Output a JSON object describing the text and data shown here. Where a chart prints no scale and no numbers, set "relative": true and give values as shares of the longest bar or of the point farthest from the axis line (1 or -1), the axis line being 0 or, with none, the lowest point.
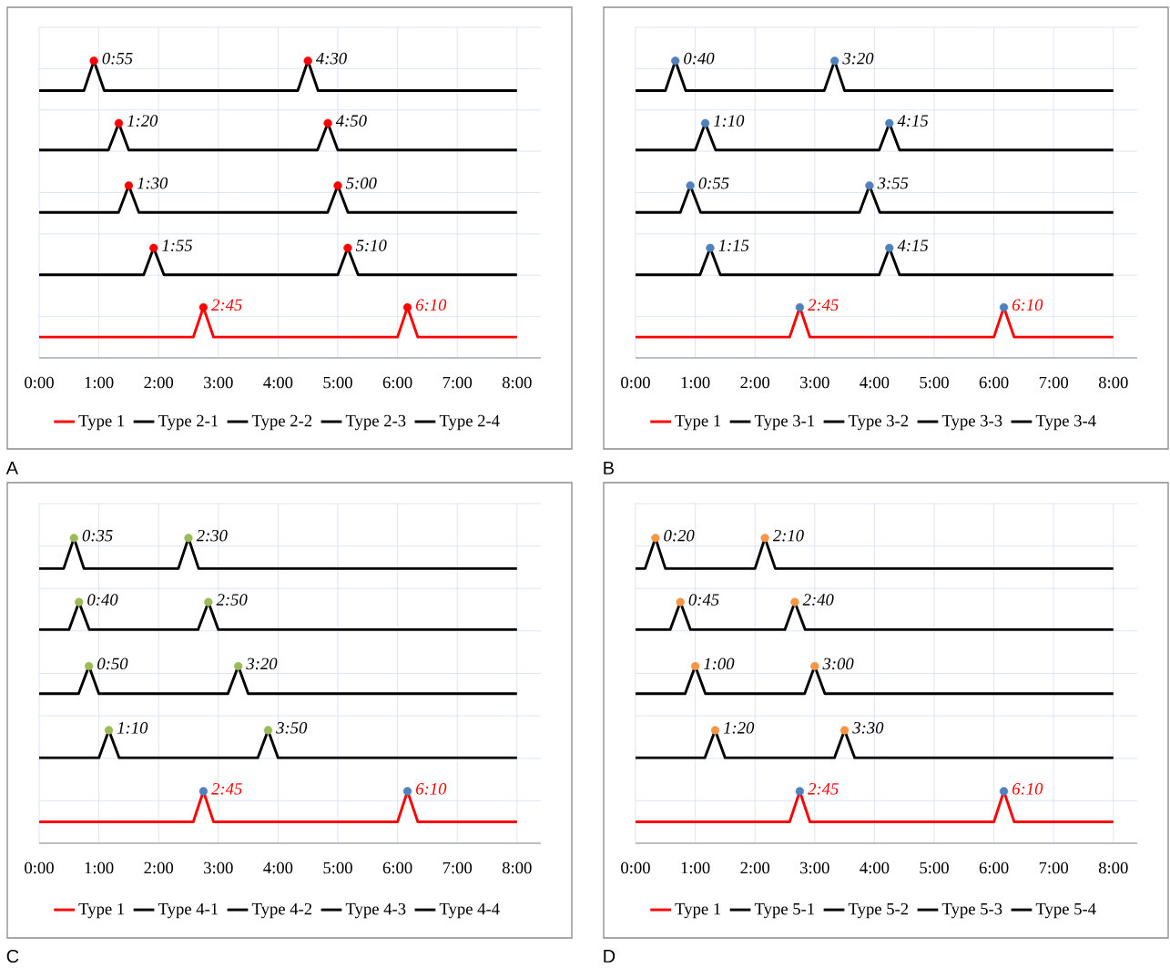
{
  "chart_data": [
    {
      "type": "line",
      "relative": true,
      "grid": true,
      "legend": "bottom",
      "xlim": [
        0,
        8.4
      ],
      "xticks": [
        {
          "value": 0,
          "label": "0:00"
        },
        {
          "value": 1,
          "label": "1:00"
        },
        {
          "value": 2,
          "label": "2:00"
        },
        {
          "value": 3,
          "label": "3:00"
        },
        {
          "value": 4,
          "label": "4:00"
        },
        {
          "value": 5,
          "label": "5:00"
        },
        {
          "value": 6,
          "label": "6:00"
        },
        {
          "value": 7,
          "label": "7:00"
        },
        {
          "value": 8,
          "label": "8:00"
        }
      ],
      "series": [
        {
          "name": "Type 1",
          "color": "#ff0000",
          "x": [
            0,
            2.58,
            2.75,
            2.92,
            6,
            6.1667,
            6.34,
            8
          ],
          "values": [
            0.07,
            0.07,
            0.17,
            0.07,
            0.07,
            0.17,
            0.07,
            0.07
          ]
        },
        {
          "name": "Type 2-1",
          "color": "#000000",
          "x": [
            0,
            0.75,
            0.9167,
            1.09,
            4.33,
            4.5,
            4.67,
            8
          ],
          "values": [
            0.9,
            0.9,
            1,
            0.9,
            0.9,
            1,
            0.9,
            0.9
          ]
        },
        {
          "name": "Type 2-2",
          "color": "#000000",
          "x": [
            0,
            1.16,
            1.3333,
            1.5,
            4.66,
            4.8333,
            5,
            8
          ],
          "values": [
            0.7,
            0.7,
            0.79,
            0.7,
            0.7,
            0.79,
            0.7,
            0.7
          ]
        },
        {
          "name": "Type 2-3",
          "color": "#000000",
          "x": [
            0,
            1.33,
            1.5,
            1.67,
            4.83,
            5,
            5.17,
            8
          ],
          "values": [
            0.49,
            0.49,
            0.58,
            0.49,
            0.49,
            0.58,
            0.49,
            0.49
          ]
        },
        {
          "name": "Type 2-4",
          "color": "#000000",
          "x": [
            0,
            1.75,
            1.9167,
            2.09,
            5,
            5.1667,
            5.34,
            8
          ],
          "values": [
            0.28,
            0.28,
            0.37,
            0.28,
            0.28,
            0.37,
            0.28,
            0.28
          ]
        },
        {
          "type": "scatter",
          "marker": "circle",
          "x": [
            2.75,
            6.1667,
            0.9167,
            4.5,
            1.3333,
            4.8333,
            1.5,
            5,
            1.9167,
            5.1667
          ],
          "values": [
            0.17,
            0.17,
            1,
            1,
            0.79,
            0.79,
            0.58,
            0.58,
            0.37,
            0.37
          ],
          "colors": [
            "#ff0000",
            "#ff0000",
            "#ff0000",
            "#ff0000",
            "#ff0000",
            "#ff0000",
            "#ff0000",
            "#ff0000",
            "#ff0000",
            "#ff0000"
          ]
        }
      ],
      "annotations": [
        {
          "text": "2:45",
          "x": 2.75,
          "y": 0.17
        },
        {
          "text": "6:10",
          "x": 6.1667,
          "y": 0.17
        },
        {
          "text": "0:55",
          "x": 0.9167,
          "y": 1
        },
        {
          "text": "4:30",
          "x": 4.5,
          "y": 1
        },
        {
          "text": "1:20",
          "x": 1.3333,
          "y": 0.79
        },
        {
          "text": "4:50",
          "x": 4.8333,
          "y": 0.79
        },
        {
          "text": "1:30",
          "x": 1.5,
          "y": 0.58
        },
        {
          "text": "5:00",
          "x": 5,
          "y": 0.58
        },
        {
          "text": "1:55",
          "x": 1.9167,
          "y": 0.37
        },
        {
          "text": "5:10",
          "x": 5.1667,
          "y": 0.37
        },
        "A"
      ]
    },
    {
      "type": "line",
      "relative": true,
      "grid": true,
      "legend": "bottom",
      "xlim": [
        0,
        8.4
      ],
      "xticks": [
        {
          "value": 0,
          "label": "0:00"
        },
        {
          "value": 1,
          "label": "1:00"
        },
        {
          "value": 2,
          "label": "2:00"
        },
        {
          "value": 3,
          "label": "3:00"
        },
        {
          "value": 4,
          "label": "4:00"
        },
        {
          "value": 5,
          "label": "5:00"
        },
        {
          "value": 6,
          "label": "6:00"
        },
        {
          "value": 7,
          "label": "7:00"
        },
        {
          "value": 8,
          "label": "8:00"
        }
      ],
      "series": [
        {
          "name": "Type 1",
          "color": "#ff0000",
          "x": [
            0,
            2.58,
            2.75,
            2.92,
            6,
            6.1667,
            6.34,
            8
          ],
          "values": [
            0.07,
            0.07,
            0.17,
            0.07,
            0.07,
            0.17,
            0.07,
            0.07
          ]
        },
        {
          "name": "Type 3-1",
          "color": "#000000",
          "x": [
            0,
            0.5,
            0.6667,
            0.84,
            3.16,
            3.3333,
            3.5,
            8
          ],
          "values": [
            0.9,
            0.9,
            1,
            0.9,
            0.9,
            1,
            0.9,
            0.9
          ]
        },
        {
          "name": "Type 3-2",
          "color": "#000000",
          "x": [
            0,
            1,
            1.1667,
            1.34,
            4.08,
            4.25,
            4.42,
            8
          ],
          "values": [
            0.7,
            0.7,
            0.79,
            0.7,
            0.7,
            0.79,
            0.7,
            0.7
          ]
        },
        {
          "name": "Type 3-3",
          "color": "#000000",
          "x": [
            0,
            0.75,
            0.9167,
            1.09,
            3.75,
            3.9167,
            4.09,
            8
          ],
          "values": [
            0.49,
            0.49,
            0.58,
            0.49,
            0.49,
            0.58,
            0.49,
            0.49
          ]
        },
        {
          "name": "Type 3-4",
          "color": "#000000",
          "x": [
            0,
            1.08,
            1.25,
            1.42,
            4.08,
            4.25,
            4.42,
            8
          ],
          "values": [
            0.28,
            0.28,
            0.37,
            0.28,
            0.28,
            0.37,
            0.28,
            0.28
          ]
        },
        {
          "type": "scatter",
          "marker": "circle",
          "x": [
            2.75,
            6.1667,
            0.6667,
            3.3333,
            1.1667,
            4.25,
            0.9167,
            3.9167,
            1.25,
            4.25
          ],
          "values": [
            0.17,
            0.17,
            1,
            1,
            0.79,
            0.79,
            0.58,
            0.58,
            0.37,
            0.37
          ],
          "colors": [
            "#4f81bd",
            "#4f81bd",
            "#4f81bd",
            "#4f81bd",
            "#4f81bd",
            "#4f81bd",
            "#4f81bd",
            "#4f81bd",
            "#4f81bd",
            "#4f81bd"
          ]
        }
      ],
      "annotations": [
        {
          "text": "2:45",
          "x": 2.75,
          "y": 0.17
        },
        {
          "text": "6:10",
          "x": 6.1667,
          "y": 0.17
        },
        {
          "text": "0:40",
          "x": 0.6667,
          "y": 1
        },
        {
          "text": "3:20",
          "x": 3.3333,
          "y": 1
        },
        {
          "text": "1:10",
          "x": 1.1667,
          "y": 0.79
        },
        {
          "text": "4:15",
          "x": 4.25,
          "y": 0.79
        },
        {
          "text": "0:55",
          "x": 0.9167,
          "y": 0.58
        },
        {
          "text": "3:55",
          "x": 3.9167,
          "y": 0.58
        },
        {
          "text": "1:15",
          "x": 1.25,
          "y": 0.37
        },
        {
          "text": "4:15",
          "x": 4.25,
          "y": 0.37
        },
        "B"
      ]
    },
    {
      "type": "line",
      "relative": true,
      "grid": true,
      "legend": "bottom",
      "xlim": [
        0,
        8.4
      ],
      "xticks": [
        {
          "value": 0,
          "label": "0:00"
        },
        {
          "value": 1,
          "label": "1:00"
        },
        {
          "value": 2,
          "label": "2:00"
        },
        {
          "value": 3,
          "label": "3:00"
        },
        {
          "value": 4,
          "label": "4:00"
        },
        {
          "value": 5,
          "label": "5:00"
        },
        {
          "value": 6,
          "label": "6:00"
        },
        {
          "value": 7,
          "label": "7:00"
        },
        {
          "value": 8,
          "label": "8:00"
        }
      ],
      "series": [
        {
          "name": "Type 1",
          "color": "#ff0000",
          "x": [
            0,
            2.58,
            2.75,
            2.92,
            6,
            6.1667,
            6.34,
            8
          ],
          "values": [
            0.07,
            0.07,
            0.17,
            0.07,
            0.07,
            0.17,
            0.07,
            0.07
          ]
        },
        {
          "name": "Type 4-1",
          "color": "#000000",
          "x": [
            0,
            0.41,
            0.5833,
            0.75,
            2.33,
            2.5,
            2.67,
            8
          ],
          "values": [
            0.9,
            0.9,
            1,
            0.9,
            0.9,
            1,
            0.9,
            0.9
          ]
        },
        {
          "name": "Type 4-2",
          "color": "#000000",
          "x": [
            0,
            0.5,
            0.6667,
            0.84,
            2.66,
            2.8333,
            3,
            8
          ],
          "values": [
            0.7,
            0.7,
            0.79,
            0.7,
            0.7,
            0.79,
            0.7,
            0.7
          ]
        },
        {
          "name": "Type 4-3",
          "color": "#000000",
          "x": [
            0,
            0.66,
            0.8333,
            1,
            3.16,
            3.3333,
            3.5,
            8
          ],
          "values": [
            0.49,
            0.49,
            0.58,
            0.49,
            0.49,
            0.58,
            0.49,
            0.49
          ]
        },
        {
          "name": "Type 4-4",
          "color": "#000000",
          "x": [
            0,
            1,
            1.1667,
            1.34,
            3.66,
            3.8333,
            4,
            8
          ],
          "values": [
            0.28,
            0.28,
            0.37,
            0.28,
            0.28,
            0.37,
            0.28,
            0.28
          ]
        },
        {
          "type": "scatter",
          "marker": "circle",
          "x": [
            2.75,
            6.1667,
            0.5833,
            2.5,
            0.6667,
            2.8333,
            0.8333,
            3.3333,
            1.1667,
            3.8333
          ],
          "values": [
            0.17,
            0.17,
            1,
            1,
            0.79,
            0.79,
            0.58,
            0.58,
            0.37,
            0.37
          ],
          "colors": [
            "#4f81bd",
            "#4f81bd",
            "#9bbb59",
            "#9bbb59",
            "#9bbb59",
            "#9bbb59",
            "#9bbb59",
            "#9bbb59",
            "#9bbb59",
            "#9bbb59"
          ]
        }
      ],
      "annotations": [
        {
          "text": "2:45",
          "x": 2.75,
          "y": 0.17
        },
        {
          "text": "6:10",
          "x": 6.1667,
          "y": 0.17
        },
        {
          "text": "0:35",
          "x": 0.5833,
          "y": 1
        },
        {
          "text": "2:30",
          "x": 2.5,
          "y": 1
        },
        {
          "text": "0:40",
          "x": 0.6667,
          "y": 0.79
        },
        {
          "text": "2:50",
          "x": 2.8333,
          "y": 0.79
        },
        {
          "text": "0:50",
          "x": 0.8333,
          "y": 0.58
        },
        {
          "text": "3:20",
          "x": 3.3333,
          "y": 0.58
        },
        {
          "text": "1:10",
          "x": 1.1667,
          "y": 0.37
        },
        {
          "text": "3:50",
          "x": 3.8333,
          "y": 0.37
        },
        "C"
      ]
    },
    {
      "type": "line",
      "relative": true,
      "grid": true,
      "legend": "bottom",
      "xlim": [
        0,
        8.4
      ],
      "xticks": [
        {
          "value": 0,
          "label": "0:00"
        },
        {
          "value": 1,
          "label": "1:00"
        },
        {
          "value": 2,
          "label": "2:00"
        },
        {
          "value": 3,
          "label": "3:00"
        },
        {
          "value": 4,
          "label": "4:00"
        },
        {
          "value": 5,
          "label": "5:00"
        },
        {
          "value": 6,
          "label": "6:00"
        },
        {
          "value": 7,
          "label": "7:00"
        },
        {
          "value": 8,
          "label": "8:00"
        }
      ],
      "series": [
        {
          "name": "Type 1",
          "color": "#ff0000",
          "x": [
            0,
            2.58,
            2.75,
            2.92,
            6,
            6.1667,
            6.34,
            8
          ],
          "values": [
            0.07,
            0.07,
            0.17,
            0.07,
            0.07,
            0.17,
            0.07,
            0.07
          ]
        },
        {
          "name": "Type 5-1",
          "color": "#000000",
          "x": [
            0,
            0.16,
            0.3333,
            0.5,
            2,
            2.1667,
            2.34,
            8
          ],
          "values": [
            0.9,
            0.9,
            1,
            0.9,
            0.9,
            1,
            0.9,
            0.9
          ]
        },
        {
          "name": "Type 5-2",
          "color": "#000000",
          "x": [
            0,
            0.58,
            0.75,
            0.92,
            2.5,
            2.6667,
            2.84,
            8
          ],
          "values": [
            0.7,
            0.7,
            0.79,
            0.7,
            0.7,
            0.79,
            0.7,
            0.7
          ]
        },
        {
          "name": "Type 5-3",
          "color": "#000000",
          "x": [
            0,
            0.83,
            1,
            1.17,
            2.83,
            3,
            3.17,
            8
          ],
          "values": [
            0.49,
            0.49,
            0.58,
            0.49,
            0.49,
            0.58,
            0.49,
            0.49
          ]
        },
        {
          "name": "Type 5-4",
          "color": "#000000",
          "x": [
            0,
            1.16,
            1.3333,
            1.5,
            3.33,
            3.5,
            3.67,
            8
          ],
          "values": [
            0.28,
            0.28,
            0.37,
            0.28,
            0.28,
            0.37,
            0.28,
            0.28
          ]
        },
        {
          "type": "scatter",
          "marker": "circle",
          "x": [
            2.75,
            6.1667,
            0.3333,
            2.1667,
            0.75,
            2.6667,
            1,
            3,
            1.3333,
            3.5
          ],
          "values": [
            0.17,
            0.17,
            1,
            1,
            0.79,
            0.79,
            0.58,
            0.58,
            0.37,
            0.37
          ],
          "colors": [
            "#4f81bd",
            "#4f81bd",
            "#f79646",
            "#f79646",
            "#f79646",
            "#f79646",
            "#f79646",
            "#f79646",
            "#f79646",
            "#f79646"
          ]
        }
      ],
      "annotations": [
        {
          "text": "2:45",
          "x": 2.75,
          "y": 0.17
        },
        {
          "text": "6:10",
          "x": 6.1667,
          "y": 0.17
        },
        {
          "text": "0:20",
          "x": 0.3333,
          "y": 1
        },
        {
          "text": "2:10",
          "x": 2.1667,
          "y": 1
        },
        {
          "text": "0:45",
          "x": 0.75,
          "y": 0.79
        },
        {
          "text": "2:40",
          "x": 2.6667,
          "y": 0.79
        },
        {
          "text": "1:00",
          "x": 1,
          "y": 0.58
        },
        {
          "text": "3:00",
          "x": 3,
          "y": 0.58
        },
        {
          "text": "1:20",
          "x": 1.3333,
          "y": 0.37
        },
        {
          "text": "3:30",
          "x": 3.5,
          "y": 0.37
        },
        "D"
      ]
    }
  ]
}
